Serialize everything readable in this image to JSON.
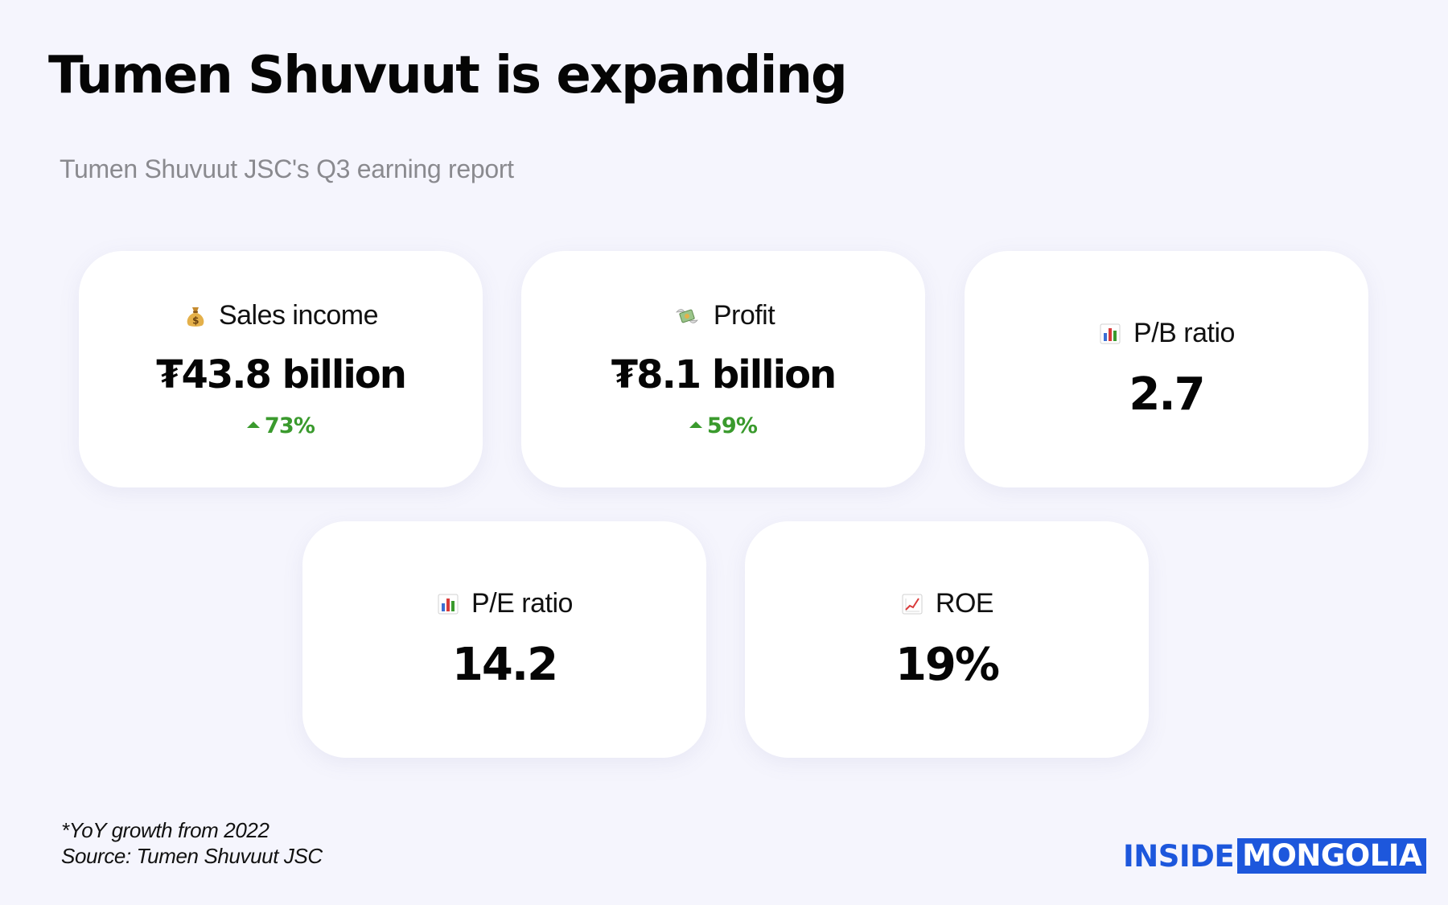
{
  "title": "Tumen Shuvuut is expanding",
  "subtitle": "Tumen Shuvuut JSC's Q3 earning report",
  "cards": [
    {
      "icon": "money-bag-icon",
      "label": "Sales income",
      "value": "₮43.8 billion",
      "growth": "73%"
    },
    {
      "icon": "money-with-wings-icon",
      "label": "Profit",
      "value": "₮8.1 billion",
      "growth": "59%"
    },
    {
      "icon": "bar-chart-icon",
      "label": "P/B ratio",
      "value": "2.7"
    },
    {
      "icon": "bar-chart-icon",
      "label": "P/E ratio",
      "value": "14.2"
    },
    {
      "icon": "chart-increasing-icon",
      "label": "ROE",
      "value": "19%"
    }
  ],
  "footnote": {
    "line1": "*YoY growth from 2022",
    "line2": "Source: Tumen Shuvuut JSC"
  },
  "logo": {
    "part1": "INSIDE",
    "part2": "MONGOLIA"
  },
  "colors": {
    "background": "#f5f5fd",
    "card": "#ffffff",
    "growth": "#3a9a2d",
    "brand": "#1d57dc",
    "subtitle": "#8a8a8f"
  }
}
